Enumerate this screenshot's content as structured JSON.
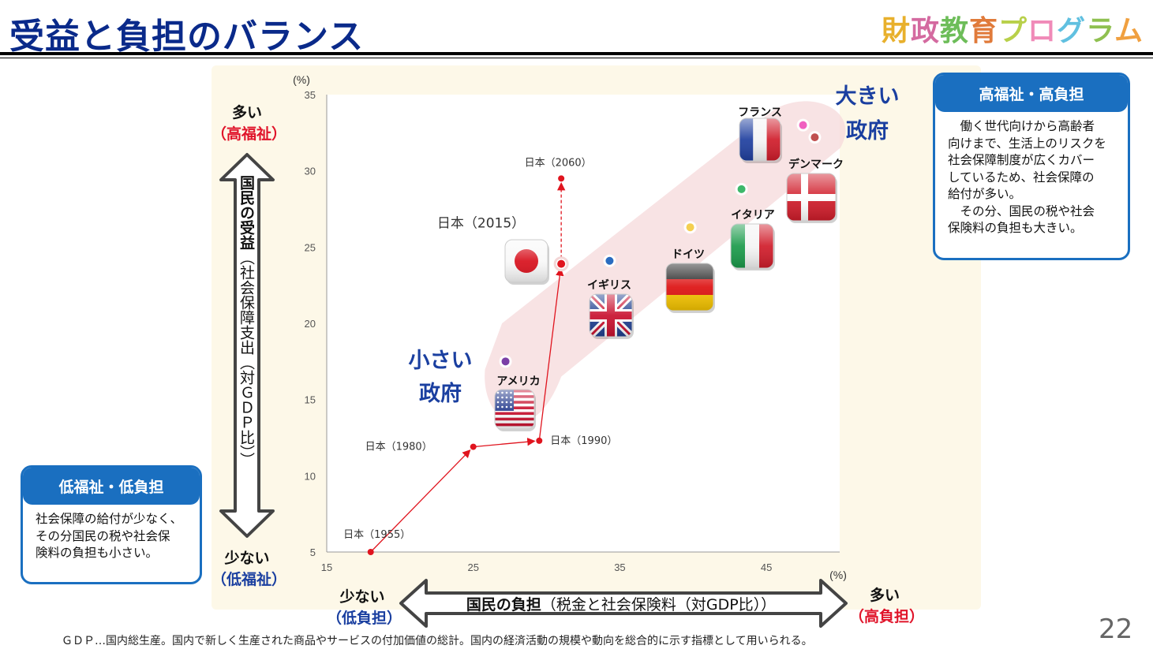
{
  "header": {
    "title": "受益と負担のバランス",
    "brand": [
      "財",
      "政",
      "教",
      "育",
      "プ",
      "ロ",
      "グ",
      "ラ",
      "ム"
    ]
  },
  "chart_data": {
    "type": "scatter",
    "x_unit": "(%)",
    "y_unit": "(%)",
    "xlim": [
      15,
      50
    ],
    "ylim": [
      5,
      35
    ],
    "x_ticks": [
      15,
      25,
      35,
      45
    ],
    "y_ticks": [
      5,
      10,
      15,
      20,
      25,
      30,
      35
    ],
    "xlabel": {
      "main": "国民の負担",
      "sub": "（税金と社会保険料（対GDP比））"
    },
    "ylabel": {
      "main": "国民の受益",
      "sub": "（社会保障支出（対ＧＤＰ比））"
    },
    "japan_path": [
      {
        "label": "日本（1955）",
        "x": 18,
        "y": 5.0
      },
      {
        "label": "日本（1980）",
        "x": 25,
        "y": 11.9
      },
      {
        "label": "日本（1990）",
        "x": 29.5,
        "y": 12.3
      },
      {
        "label": "日本（2015）",
        "x": 31,
        "y": 23.9
      },
      {
        "label": "日本（2060）",
        "x": 31,
        "y": 29.5
      }
    ],
    "countries": [
      {
        "name": "アメリカ",
        "x": 27.2,
        "y": 17.5,
        "color": "#7b3fa6"
      },
      {
        "name": "イギリス",
        "x": 34.3,
        "y": 24.1,
        "color": "#2a6cc0"
      },
      {
        "name": "ドイツ",
        "x": 39.8,
        "y": 26.3,
        "color": "#f4cf50"
      },
      {
        "name": "イタリア",
        "x": 43.3,
        "y": 28.8,
        "color": "#3db86a"
      },
      {
        "name": "フランス",
        "x": 47.5,
        "y": 33.0,
        "color": "#f060c0"
      },
      {
        "name": "デンマーク",
        "x": 48.3,
        "y": 32.2,
        "color": "#c05050"
      }
    ],
    "annotations": {
      "small_gov": [
        "小さい",
        "政府"
      ],
      "big_gov": [
        "大きい",
        "政府"
      ]
    }
  },
  "axis_notes": {
    "y_high": {
      "top": "多い",
      "bottom": "（高福祉）"
    },
    "y_low": {
      "top": "少ない",
      "bottom": "（低福祉）"
    },
    "x_low": {
      "top": "少ない",
      "bottom": "（低負担）"
    },
    "x_high": {
      "top": "多い",
      "bottom": "（高負担）"
    }
  },
  "callouts": {
    "high": {
      "title": "高福祉・高負担",
      "lines": [
        "　働く世代向けから高齢者",
        "向けまで、生活上のリスクを",
        "社会保障制度が広くカバー",
        "しているため、社会保障の",
        "給付が多い。",
        "　その分、国民の税や社会",
        "保険料の負担も大きい。"
      ]
    },
    "low": {
      "title": "低福祉・低負担",
      "lines": [
        "社会保障の給付が少なく、",
        "その分国民の税や社会保",
        "険料の負担も小さい。"
      ]
    }
  },
  "footnote": "ＧＤＰ…国内総生産。国内で新しく生産された商品やサービスの付加価値の総計。国内の経済活動の規模や動向を総合的に示す指標として用いられる。",
  "page_number": "22"
}
